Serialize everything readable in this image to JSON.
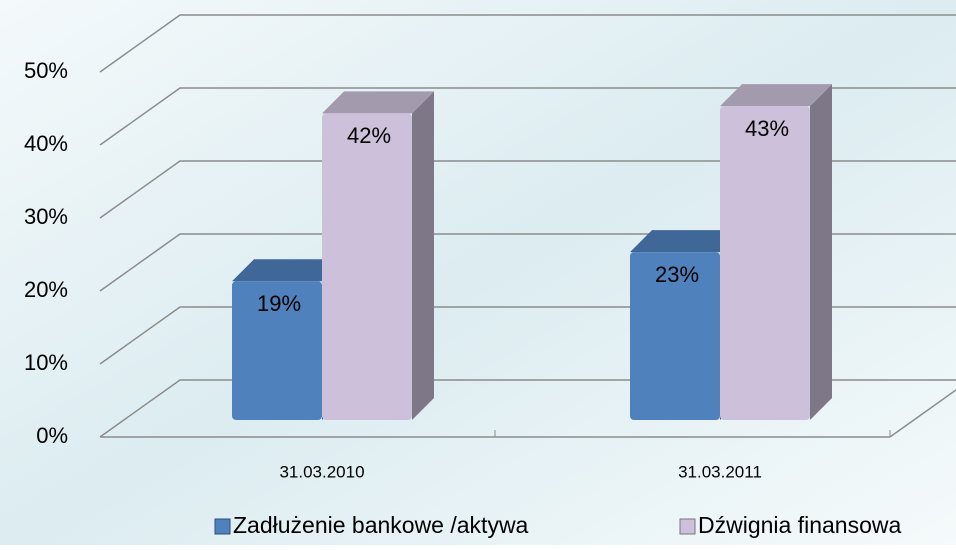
{
  "chart_data": {
    "type": "bar3d",
    "categories": [
      "31.03.2010",
      "31.03.2011"
    ],
    "series": [
      {
        "name": "Zadłużenie bankowe /aktywa",
        "color": "#4f81bd",
        "values": [
          19,
          23
        ],
        "value_labels": [
          "19%",
          "23%"
        ]
      },
      {
        "name": "Dźwignia finansowa",
        "color": "#ccc0da",
        "values": [
          42,
          43
        ],
        "value_labels": [
          "42%",
          "43%"
        ]
      }
    ],
    "ylim": [
      0,
      50
    ],
    "yticks": [
      {
        "value": 0,
        "label": "0%"
      },
      {
        "value": 10,
        "label": "10%"
      },
      {
        "value": 20,
        "label": "20%"
      },
      {
        "value": 30,
        "label": "30%"
      },
      {
        "value": 40,
        "label": "40%"
      },
      {
        "value": 50,
        "label": "50%"
      }
    ],
    "grid": true,
    "legend": "bottom"
  }
}
